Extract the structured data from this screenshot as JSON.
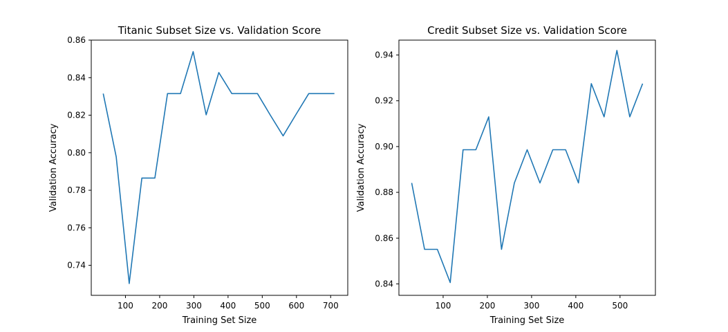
{
  "chart_data": [
    {
      "type": "line",
      "title": "Titanic Subset Size vs. Validation Score",
      "xlabel": "Training Set Size",
      "ylabel": "Validation Accuracy",
      "xlim": [
        0,
        750
      ],
      "ylim": [
        0.724,
        0.86
      ],
      "xticks": [
        100,
        200,
        300,
        400,
        500,
        600,
        700
      ],
      "yticks": [
        0.74,
        0.76,
        0.78,
        0.8,
        0.82,
        0.84,
        0.86
      ],
      "grid": false,
      "series": [
        {
          "color": "#1f77b4",
          "x": [
            35,
            73,
            111,
            148,
            186,
            223,
            261,
            298,
            336,
            373,
            411,
            448,
            486,
            523,
            561,
            598,
            636,
            673,
            711
          ],
          "y": [
            0.8315,
            0.7978,
            0.7303,
            0.7865,
            0.7865,
            0.8315,
            0.8315,
            0.8539,
            0.8202,
            0.8427,
            0.8315,
            0.8315,
            0.8315,
            0.8202,
            0.809,
            0.8202,
            0.8315,
            0.8315,
            0.8315
          ]
        }
      ]
    },
    {
      "type": "line",
      "title": "Credit Subset Size vs. Validation Score",
      "xlabel": "Training Set Size",
      "ylabel": "Validation Accuracy",
      "xlim": [
        0,
        580
      ],
      "ylim": [
        0.835,
        0.9465
      ],
      "xticks": [
        100,
        200,
        300,
        400,
        500
      ],
      "yticks": [
        0.84,
        0.86,
        0.88,
        0.9,
        0.92,
        0.94
      ],
      "grid": false,
      "series": [
        {
          "color": "#1f77b4",
          "x": [
            29,
            58,
            87,
            116,
            145,
            174,
            203,
            232,
            261,
            290,
            319,
            348,
            377,
            406,
            435,
            464,
            493,
            522,
            551
          ],
          "y": [
            0.8841,
            0.8551,
            0.8551,
            0.8406,
            0.8986,
            0.8986,
            0.913,
            0.8551,
            0.8841,
            0.8986,
            0.8841,
            0.8986,
            0.8986,
            0.8841,
            0.9275,
            0.913,
            0.942,
            0.913,
            0.9275
          ]
        }
      ]
    }
  ]
}
